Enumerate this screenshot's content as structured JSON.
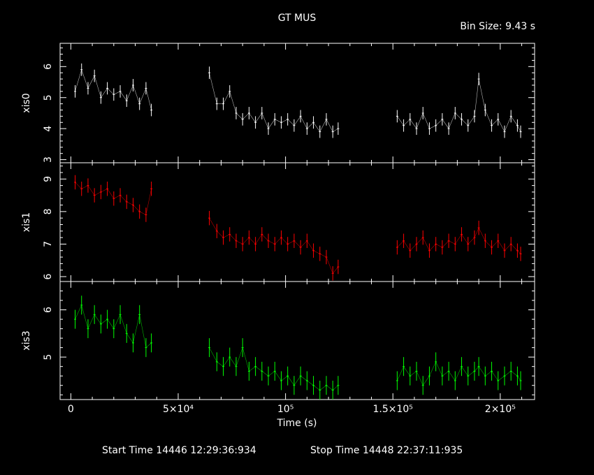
{
  "title": "GT MUS",
  "bin_size_label": "Bin Size: 9.43 s",
  "footer": {
    "start_time": "Start Time 14446 12:29:36:934",
    "stop_time": "Stop Time 14448 22:37:11:935"
  },
  "chart_data": {
    "type": "line",
    "xlabel": "Time (s)",
    "xlim": [
      -5000,
      216000
    ],
    "x_ticks": [
      {
        "value": 0,
        "label": "0"
      },
      {
        "value": 50000,
        "label": "5×10⁴"
      },
      {
        "value": 100000,
        "label": "10⁵"
      },
      {
        "value": 150000,
        "label": "1.5×10⁵"
      },
      {
        "value": 200000,
        "label": "2×10⁵"
      }
    ],
    "segments": [
      [
        0,
        38000
      ],
      [
        64000,
        126000
      ],
      [
        151000,
        210000
      ]
    ],
    "panels": [
      {
        "name": "xis0",
        "ylabel": "xis0",
        "color": "#ffffff",
        "ylim": [
          2.9,
          6.75
        ],
        "yticks": [
          3,
          4,
          5,
          6
        ],
        "x": [
          2000,
          5000,
          8000,
          11000,
          14000,
          17000,
          20000,
          23000,
          26000,
          29000,
          32000,
          35000,
          37500,
          64500,
          68000,
          71000,
          74000,
          77000,
          80000,
          83000,
          86000,
          89000,
          92000,
          95000,
          98000,
          101000,
          104000,
          107000,
          110000,
          113000,
          116000,
          119000,
          122000,
          124500,
          152000,
          155000,
          158000,
          161000,
          164000,
          167000,
          170000,
          173000,
          176000,
          179000,
          182000,
          185000,
          188000,
          190000,
          193000,
          196000,
          199000,
          202000,
          205000,
          208000,
          209500
        ],
        "y": [
          5.2,
          5.9,
          5.3,
          5.7,
          5.0,
          5.3,
          5.1,
          5.2,
          4.9,
          5.4,
          4.8,
          5.3,
          4.6,
          5.8,
          4.8,
          4.8,
          5.2,
          4.5,
          4.3,
          4.5,
          4.2,
          4.5,
          4.0,
          4.3,
          4.2,
          4.3,
          4.1,
          4.4,
          4.0,
          4.2,
          3.9,
          4.3,
          3.9,
          4.0,
          4.4,
          4.1,
          4.3,
          4.0,
          4.5,
          4.0,
          4.1,
          4.3,
          4.0,
          4.5,
          4.3,
          4.1,
          4.4,
          5.6,
          4.6,
          4.1,
          4.3,
          3.9,
          4.4,
          4.1,
          3.9
        ],
        "err": 0.2
      },
      {
        "name": "xis1",
        "ylabel": "xis1",
        "color": "#ff0000",
        "ylim": [
          5.85,
          9.5
        ],
        "yticks": [
          6,
          7,
          8,
          9
        ],
        "x": [
          2000,
          5000,
          8000,
          11000,
          14000,
          17000,
          20000,
          23000,
          26000,
          29000,
          32000,
          35000,
          37500,
          64500,
          68000,
          71000,
          74000,
          77000,
          80000,
          83000,
          86000,
          89000,
          92000,
          95000,
          98000,
          101000,
          104000,
          107000,
          110000,
          113000,
          116000,
          119000,
          122000,
          124500,
          152000,
          155000,
          158000,
          161000,
          164000,
          167000,
          170000,
          173000,
          176000,
          179000,
          182000,
          185000,
          188000,
          190000,
          193000,
          196000,
          199000,
          202000,
          205000,
          208000,
          209500
        ],
        "y": [
          8.9,
          8.7,
          8.8,
          8.5,
          8.6,
          8.7,
          8.4,
          8.5,
          8.3,
          8.2,
          8.0,
          7.9,
          8.7,
          7.8,
          7.4,
          7.2,
          7.3,
          7.1,
          7.0,
          7.2,
          7.0,
          7.3,
          7.1,
          7.0,
          7.2,
          7.0,
          7.1,
          6.9,
          7.1,
          6.8,
          6.7,
          6.6,
          6.1,
          6.3,
          6.9,
          7.1,
          6.8,
          7.0,
          7.2,
          6.8,
          7.0,
          6.9,
          7.1,
          7.0,
          7.3,
          7.0,
          7.2,
          7.5,
          7.1,
          6.9,
          7.1,
          6.8,
          7.0,
          6.8,
          6.7
        ],
        "err": 0.22
      },
      {
        "name": "xis3",
        "ylabel": "xis3",
        "color": "#00ff00",
        "ylim": [
          4.1,
          6.6
        ],
        "yticks": [
          5,
          6
        ],
        "x": [
          2000,
          5000,
          8000,
          11000,
          14000,
          17000,
          20000,
          23000,
          26000,
          29000,
          32000,
          35000,
          37500,
          64500,
          68000,
          71000,
          74000,
          77000,
          80000,
          83000,
          86000,
          89000,
          92000,
          95000,
          98000,
          101000,
          104000,
          107000,
          110000,
          113000,
          116000,
          119000,
          122000,
          124500,
          152000,
          155000,
          158000,
          161000,
          164000,
          167000,
          170000,
          173000,
          176000,
          179000,
          182000,
          185000,
          188000,
          190000,
          193000,
          196000,
          199000,
          202000,
          205000,
          208000,
          209500
        ],
        "y": [
          5.8,
          6.1,
          5.6,
          5.9,
          5.7,
          5.8,
          5.6,
          5.9,
          5.5,
          5.3,
          5.9,
          5.2,
          5.3,
          5.2,
          4.9,
          4.8,
          5.0,
          4.8,
          5.2,
          4.7,
          4.8,
          4.7,
          4.6,
          4.7,
          4.5,
          4.6,
          4.4,
          4.6,
          4.5,
          4.4,
          4.3,
          4.4,
          4.3,
          4.4,
          4.5,
          4.8,
          4.6,
          4.7,
          4.4,
          4.6,
          4.9,
          4.6,
          4.7,
          4.5,
          4.8,
          4.6,
          4.7,
          4.8,
          4.6,
          4.7,
          4.5,
          4.6,
          4.7,
          4.6,
          4.5
        ],
        "err": 0.2
      }
    ]
  }
}
